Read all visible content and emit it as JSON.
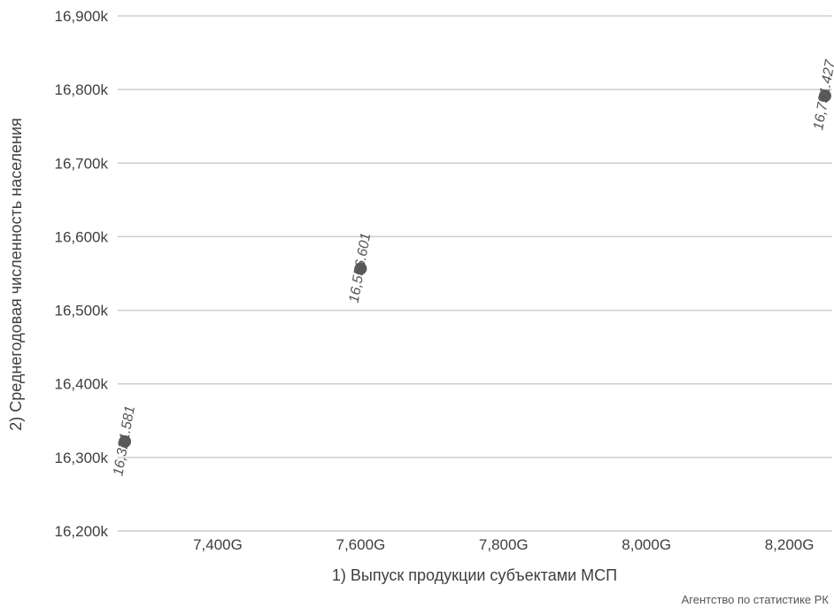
{
  "chart_data": {
    "type": "scatter",
    "xlabel": "1) Выпуск продукции субъектами МСП",
    "ylabel": "2) Среднегодовая численность населения",
    "x_unit_suffix": "G",
    "y_unit_suffix": "k",
    "xlim": [
      7260,
      8260
    ],
    "ylim": [
      16200,
      16900
    ],
    "x_ticks": [
      7400,
      7600,
      7800,
      8000,
      8200
    ],
    "y_ticks": [
      16200,
      16300,
      16400,
      16500,
      16600,
      16700,
      16800,
      16900
    ],
    "x_tick_labels": [
      "7,400G",
      "7,600G",
      "7,800G",
      "8,000G",
      "8,200G"
    ],
    "y_tick_labels": [
      "16,200k",
      "16,300k",
      "16,400k",
      "16,500k",
      "16,600k",
      "16,700k",
      "16,800k",
      "16,900k"
    ],
    "grid": true,
    "points": [
      {
        "x": 7270,
        "y": 16321.581,
        "label": "16,321.581"
      },
      {
        "x": 7600,
        "y": 16556.601,
        "label": "16,556.601"
      },
      {
        "x": 8250,
        "y": 16791.427,
        "label": "16,791.427"
      }
    ],
    "point_color": "#5a5a5a",
    "grid_color": "#c9ced6"
  },
  "source": "Агентство по статистике РК"
}
